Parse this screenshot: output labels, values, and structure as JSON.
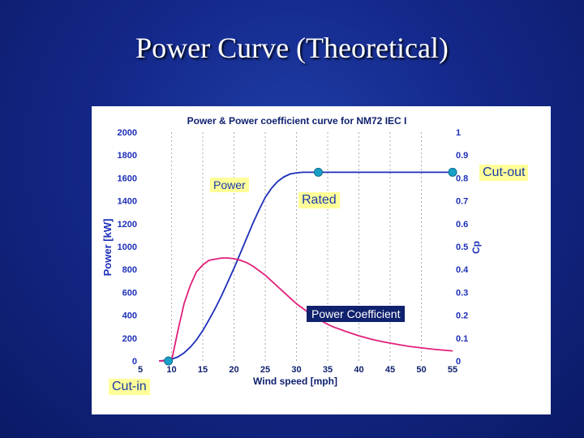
{
  "slide": {
    "title": "Power Curve (Theoretical)"
  },
  "chart_data": {
    "type": "line",
    "title": "Power & Power coefficient curve for NM72 IEC I",
    "xlabel": "Wind speed [mph]",
    "ylabel": "Power [kW]",
    "y2label": "Cp",
    "xlim": [
      5,
      55
    ],
    "ylim": [
      0,
      2000
    ],
    "y2lim": [
      0,
      1
    ],
    "x_ticks": [
      5,
      10,
      15,
      20,
      25,
      30,
      35,
      40,
      45,
      50,
      55
    ],
    "y_ticks": [
      0,
      200,
      400,
      600,
      800,
      1000,
      1200,
      1400,
      1600,
      1800,
      2000
    ],
    "y2_ticks": [
      0,
      0.1,
      0.2,
      0.3,
      0.4,
      0.5,
      0.6,
      0.7,
      0.8,
      0.9,
      1
    ],
    "grid": "vertical",
    "series": [
      {
        "name": "Power",
        "axis": "left",
        "color": "#1c2fb8",
        "x": [
          8,
          9,
          10,
          11,
          12,
          13,
          14,
          15,
          16,
          17,
          18,
          19,
          20,
          21,
          22,
          23,
          24,
          25,
          26,
          27,
          28,
          29,
          30,
          31,
          32,
          33,
          34,
          35,
          40,
          45,
          50,
          55
        ],
        "y": [
          0,
          5,
          15,
          35,
          70,
          120,
          185,
          265,
          360,
          460,
          570,
          690,
          810,
          940,
          1070,
          1200,
          1320,
          1430,
          1510,
          1570,
          1610,
          1635,
          1645,
          1650,
          1650,
          1650,
          1650,
          1650,
          1650,
          1650,
          1650,
          1650
        ]
      },
      {
        "name": "Power Coefficient",
        "axis": "right",
        "color": "#e0207a",
        "x": [
          8,
          9,
          10,
          11,
          12,
          13,
          14,
          15,
          16,
          17,
          18,
          19,
          20,
          21,
          22,
          23,
          24,
          25,
          26,
          27,
          28,
          29,
          30,
          31,
          32,
          33,
          34,
          35,
          36,
          38,
          40,
          42,
          44,
          46,
          48,
          50,
          52,
          54,
          55
        ],
        "y": [
          0,
          0.0,
          0.0,
          0.13,
          0.25,
          0.33,
          0.39,
          0.42,
          0.44,
          0.445,
          0.45,
          0.45,
          0.447,
          0.44,
          0.43,
          0.415,
          0.395,
          0.375,
          0.35,
          0.325,
          0.3,
          0.275,
          0.25,
          0.23,
          0.21,
          0.19,
          0.175,
          0.16,
          0.148,
          0.128,
          0.11,
          0.095,
          0.083,
          0.073,
          0.064,
          0.057,
          0.051,
          0.046,
          0.044
        ]
      }
    ],
    "markers": [
      {
        "label": "Cut-in",
        "x": 9.5,
        "y": 0
      },
      {
        "label": "Rated",
        "x": 33.5,
        "y": 1650
      },
      {
        "label": "Cut-out",
        "x": 55,
        "y": 1650
      }
    ],
    "annotations": {
      "power": "Power",
      "rated": "Rated",
      "cut_out": "Cut-out",
      "cut_in": "Cut-in",
      "power_coefficient": "Power Coefficient"
    },
    "colors": {
      "marker": "#1aa0c8",
      "label_yellow": "#ffff99",
      "label_navy": "#10226e",
      "grid": "#999999"
    }
  }
}
